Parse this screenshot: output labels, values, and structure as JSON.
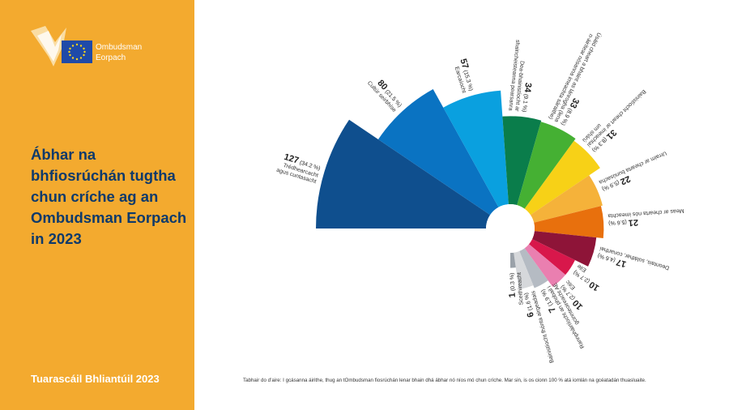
{
  "logo": {
    "org_name_line1": "Ombudsman",
    "org_name_line2": "Eorpach",
    "eu_flag": "eu-flag-icon",
    "brand_mark": "ombudsman-logo-icon"
  },
  "title": "Ábhar na bhfiosrúchán tugtha chun críche ag an Ombudsman Eorpach in 2023",
  "report_label": "Tuarascáil Bhliantúil 2023",
  "footnote": "Tabhair do d’aire: I gcásanna áirithe, thug an tOmbudsman fiosrúchán lenar bhain dhá ábhar nó níos mó chun críche. Mar sin, is os cionn 100 % atá iomlán na gcéatadán thuasluaite.",
  "colors": {
    "panel": "#f3aa2f",
    "title": "#0e3a6b"
  },
  "chart_data": {
    "type": "pie",
    "variant": "polar-area",
    "categories": [
      {
        "count": "127",
        "pct": "(34.2 %)",
        "label": [
          "Trédhearcacht",
          "agus cuntasacht"
        ],
        "value": 127,
        "color": "#0f4f8e"
      },
      {
        "count": "80",
        "pct": "(21.5 %)",
        "label": [
          "Cultúr seirbhíse"
        ],
        "value": 80,
        "color": "#0a73c2"
      },
      {
        "count": "57",
        "pct": "(15.3 %)",
        "label": [
          "Earcaíocht"
        ],
        "value": 57,
        "color": "#0aa0df"
      },
      {
        "count": "34",
        "pct": "(9.1 %)",
        "label": [
          "Dea-bhainistíocht ar",
          "shaincheisteanna pearsanra"
        ],
        "value": 34,
        "color": "#0a7d4b"
      },
      {
        "count": "33",
        "pct": "(8.9 %)",
        "label": [
          "Úsáid cheart a bhaint as lánrogha (lena",
          "n-áirítear nósanna imeachta sáraithe)"
        ],
        "value": 33,
        "color": "#45b033"
      },
      {
        "count": "31",
        "pct": "(8.3 %)",
        "label": [
          "Bainistíocht cheart ar imeachtaí",
          "um shárú"
        ],
        "value": 31,
        "color": "#f7d117"
      },
      {
        "count": "22",
        "pct": "(5.9 %)",
        "label": [
          "Urraim ar chearta bunúsacha"
        ],
        "value": 22,
        "color": "#f5b23a"
      },
      {
        "count": "21",
        "pct": "(5.6 %)",
        "label": [
          "Meas ar chearta nós imeachta"
        ],
        "value": 21,
        "color": "#e8700d"
      },
      {
        "count": "17",
        "pct": "(4.6 %)",
        "label": [
          "Deontais, soláthar, conarthaí"
        ],
        "value": 17,
        "color": "#8e1438"
      },
      {
        "count": "10",
        "pct": "(2.7 %)",
        "label": [
          "Eile"
        ],
        "value": 10,
        "color": "#d8174b"
      },
      {
        "count": "10",
        "pct": "(2.7 %)",
        "label": [
          "Eitic"
        ],
        "value": 10,
        "color": "#ea7fb0"
      },
      {
        "count": "7",
        "pct": "(1.9 %)",
        "label": [
          "Rannpháirtíocht an phobail i",
          "gcinnteoireacht AE"
        ],
        "value": 7,
        "color": "#b5bbc3"
      },
      {
        "count": "6",
        "pct": "(1.6 %)",
        "label": [
          "Bainistíocht fhónta airgeadais"
        ],
        "value": 6,
        "color": "#d6d8db"
      },
      {
        "count": "1",
        "pct": "(0.3 %)",
        "label": [
          "Sceithireacht"
        ],
        "value": 1,
        "color": "#9aa1a9"
      }
    ]
  }
}
